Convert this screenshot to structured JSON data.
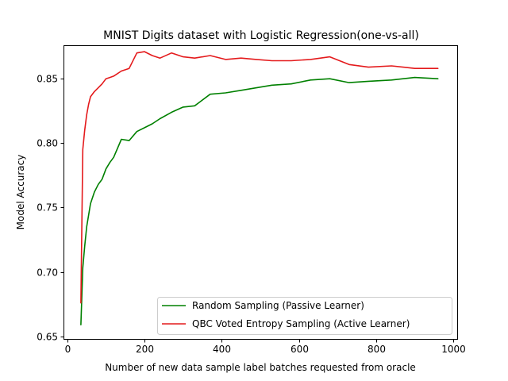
{
  "chart_data": {
    "type": "line",
    "title": "MNIST Digits dataset with Logistic Regression(one-vs-all)",
    "xlabel": "Number of new data sample label batches requested from oracle",
    "ylabel": "Model Accuracy",
    "xlim": [
      -10,
      1010
    ],
    "ylim": [
      0.648,
      0.876
    ],
    "xticks": [
      0,
      200,
      400,
      600,
      800,
      1000
    ],
    "yticks": [
      0.65,
      0.7,
      0.75,
      0.8,
      0.85
    ],
    "xtick_labels": [
      "0",
      "200",
      "400",
      "600",
      "800",
      "1000"
    ],
    "ytick_labels": [
      "0.65",
      "0.70",
      "0.75",
      "0.80",
      "0.85"
    ],
    "grid": false,
    "legend_position": "lower-right",
    "series": [
      {
        "name": "Random Sampling (Passive Learner)",
        "color": "#008000",
        "x": [
          35,
          40,
          45,
          50,
          55,
          60,
          70,
          80,
          90,
          100,
          110,
          120,
          140,
          160,
          180,
          200,
          220,
          240,
          270,
          300,
          330,
          370,
          410,
          450,
          490,
          530,
          580,
          630,
          680,
          730,
          780,
          840,
          900,
          960
        ],
        "y": [
          0.659,
          0.703,
          0.72,
          0.735,
          0.744,
          0.753,
          0.762,
          0.768,
          0.772,
          0.78,
          0.785,
          0.789,
          0.803,
          0.802,
          0.809,
          0.812,
          0.815,
          0.819,
          0.824,
          0.828,
          0.829,
          0.838,
          0.839,
          0.841,
          0.843,
          0.845,
          0.846,
          0.849,
          0.85,
          0.847,
          0.848,
          0.849,
          0.851,
          0.85
        ]
      },
      {
        "name": "QBC Voted Entropy Sampling (Active Learner)",
        "color": "#e41a1c",
        "x": [
          35,
          40,
          45,
          50,
          55,
          60,
          70,
          80,
          90,
          100,
          110,
          120,
          140,
          160,
          180,
          200,
          220,
          240,
          270,
          300,
          330,
          370,
          410,
          450,
          490,
          530,
          580,
          630,
          680,
          730,
          780,
          840,
          900,
          960
        ],
        "y": [
          0.676,
          0.795,
          0.81,
          0.822,
          0.83,
          0.836,
          0.84,
          0.843,
          0.846,
          0.85,
          0.851,
          0.852,
          0.856,
          0.858,
          0.87,
          0.871,
          0.868,
          0.866,
          0.87,
          0.867,
          0.866,
          0.868,
          0.865,
          0.866,
          0.865,
          0.864,
          0.864,
          0.865,
          0.867,
          0.861,
          0.859,
          0.86,
          0.858,
          0.858
        ]
      }
    ]
  }
}
